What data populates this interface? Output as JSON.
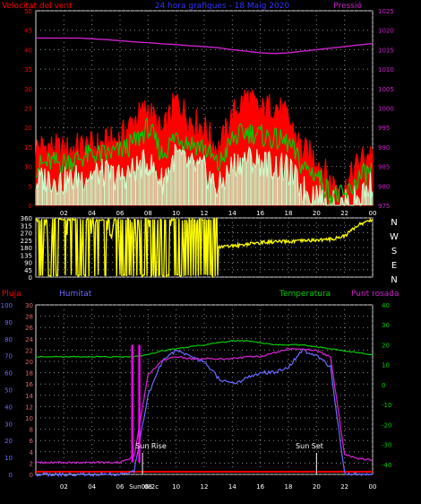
{
  "colors": {
    "bg": "#000000",
    "frame": "#d8d8d8",
    "grid": "#8a8a8a",
    "red": "#ff0000",
    "green": "#00cc00",
    "mint": "#ccffcc",
    "magenta": "#cc22cc",
    "blue": "#6a6aff",
    "yellow": "#ffff00",
    "pink": "#ff00ff",
    "white": "#ffffff"
  },
  "header": {
    "wind_speed_label": "Velocitat del vent",
    "title": "24 hora grafiques - 18 Maig 2020",
    "pressure_label": "Pressió"
  },
  "direction_labels": [
    "N",
    "W",
    "S",
    "E",
    "N"
  ],
  "lower_labels": {
    "rain": "Pluja",
    "humidity": "Humitat",
    "temperature": "Temperatura",
    "dewpoint": "Punt rosada"
  },
  "annotations": {
    "sunrise": "Sun Rise",
    "sunset": "Sun Set",
    "sunrise_time": "Sun06:2c"
  },
  "chart_data": [
    {
      "type": "line",
      "title": "24 hora grafiques - 18 Maig 2020",
      "ylabel": "Velocitat del vent",
      "y2label": "Pressió",
      "ylim": [
        0,
        50
      ],
      "y2lim": [
        975,
        1025
      ],
      "yticks": [
        0,
        5,
        10,
        15,
        20,
        25,
        30,
        35,
        40,
        45,
        50
      ],
      "y2ticks": [
        975,
        980,
        985,
        990,
        995,
        1000,
        1005,
        1010,
        1015,
        1020,
        1025
      ],
      "x_hours": [
        0,
        1,
        2,
        3,
        4,
        5,
        6,
        7,
        8,
        9,
        10,
        11,
        12,
        13,
        14,
        15,
        16,
        17,
        18,
        19,
        20,
        21,
        22,
        23,
        24
      ],
      "x_tick_labels": [
        "02",
        "04",
        "06",
        "08",
        "10",
        "12",
        "14",
        "16",
        "18",
        "20",
        "22",
        "00"
      ],
      "series": [
        {
          "name": "Velocitat del vent (ratxa)",
          "color": "red",
          "values": [
            15,
            15,
            14,
            15,
            15,
            16,
            17,
            22,
            25,
            18,
            27,
            22,
            20,
            14,
            23,
            28,
            24,
            26,
            22,
            14,
            12,
            6,
            4,
            11,
            14
          ]
        },
        {
          "name": "Velocitat del vent (mitjana)",
          "color": "green",
          "values": [
            10,
            11,
            11,
            12,
            13,
            13,
            14,
            16,
            20,
            13,
            18,
            16,
            15,
            10,
            17,
            19,
            18,
            17,
            16,
            10,
            8,
            3,
            2,
            7,
            9
          ]
        },
        {
          "name": "Velocitat del vent (mínima)",
          "color": "mint",
          "values": [
            6,
            7,
            6,
            7,
            8,
            8,
            7,
            9,
            11,
            6,
            13,
            10,
            9,
            4,
            10,
            12,
            11,
            10,
            9,
            4,
            3,
            0,
            0,
            2,
            6
          ]
        },
        {
          "name": "Pressió",
          "color": "magenta",
          "axis": "right",
          "values": [
            1018,
            1018,
            1018,
            1018,
            1017.8,
            1017.6,
            1017.3,
            1017,
            1016.8,
            1016.5,
            1016.3,
            1016,
            1015.8,
            1015.5,
            1015,
            1014.6,
            1014.2,
            1014,
            1014.2,
            1014.6,
            1015,
            1015.4,
            1015.8,
            1016.2,
            1016.6
          ]
        }
      ]
    },
    {
      "type": "line",
      "ylabel": "Direcció del vent",
      "ylim": [
        0,
        360
      ],
      "yticks": [
        0,
        45,
        90,
        135,
        180,
        225,
        270,
        315,
        360
      ],
      "x_hours": [
        0,
        1,
        2,
        3,
        4,
        5,
        6,
        7,
        8,
        9,
        10,
        11,
        12,
        13,
        14,
        15,
        16,
        17,
        18,
        19,
        20,
        21,
        22,
        23,
        24
      ],
      "series": [
        {
          "name": "Direcció",
          "color": "yellow",
          "values": [
            350,
            10,
            20,
            350,
            355,
            5,
            350,
            355,
            355,
            40,
            60,
            20,
            30,
            180,
            190,
            200,
            210,
            215,
            215,
            220,
            225,
            230,
            250,
            320,
            350
          ]
        }
      ]
    },
    {
      "type": "line",
      "rain_label": "Pluja",
      "humidity_label": "Humitat",
      "temperature_label": "Temperatura",
      "dewpoint_label": "Punt rosada",
      "rain_ticks": [
        0,
        10,
        20,
        30,
        40,
        50,
        60,
        70,
        80,
        90,
        100
      ],
      "humidity_ticks": [
        0,
        2,
        4,
        6,
        8,
        10,
        12,
        14,
        16,
        18,
        20,
        22,
        24,
        26,
        28,
        30
      ],
      "temp_ticks": [
        -40,
        -30,
        -20,
        -10,
        0,
        10,
        20,
        30,
        40
      ],
      "ylim": [
        -45,
        40
      ],
      "humidity_lim": [
        0,
        30
      ],
      "x_hours": [
        0,
        1,
        2,
        3,
        4,
        5,
        6,
        7,
        8,
        9,
        10,
        11,
        12,
        13,
        14,
        15,
        16,
        17,
        18,
        19,
        20,
        21,
        22,
        23,
        24
      ],
      "series": [
        {
          "name": "Temperatura",
          "color": "green",
          "axis": "temp",
          "values": [
            14,
            14,
            14,
            14,
            14,
            14,
            14,
            14,
            15,
            17,
            18,
            19,
            20,
            21,
            22,
            22,
            21,
            20,
            20,
            20,
            19,
            18,
            17,
            16,
            15
          ]
        },
        {
          "name": "Punt rosada",
          "color": "magenta",
          "axis": "temp",
          "values": [
            -39,
            -39,
            -39,
            -39,
            -39,
            -39,
            -39,
            -36,
            5,
            12,
            14,
            13,
            13,
            13,
            13,
            14,
            14,
            16,
            18,
            18,
            17,
            14,
            -35,
            -37,
            -38
          ]
        },
        {
          "name": "Humitat",
          "color": "blue",
          "axis": "humidity",
          "values": [
            0,
            0,
            0,
            0,
            0,
            0,
            0,
            0.5,
            14,
            20,
            22,
            21,
            20,
            17,
            16,
            17,
            18,
            18,
            19,
            22,
            21,
            19,
            0.2,
            0,
            0
          ]
        },
        {
          "name": "Pluja",
          "color": "red",
          "axis": "rain",
          "values": [
            1,
            1,
            1,
            1,
            1,
            1,
            1,
            1,
            1,
            1,
            1,
            1,
            1,
            1,
            1,
            1,
            1,
            1,
            1,
            1,
            1,
            1,
            1,
            1,
            1
          ]
        }
      ]
    }
  ]
}
